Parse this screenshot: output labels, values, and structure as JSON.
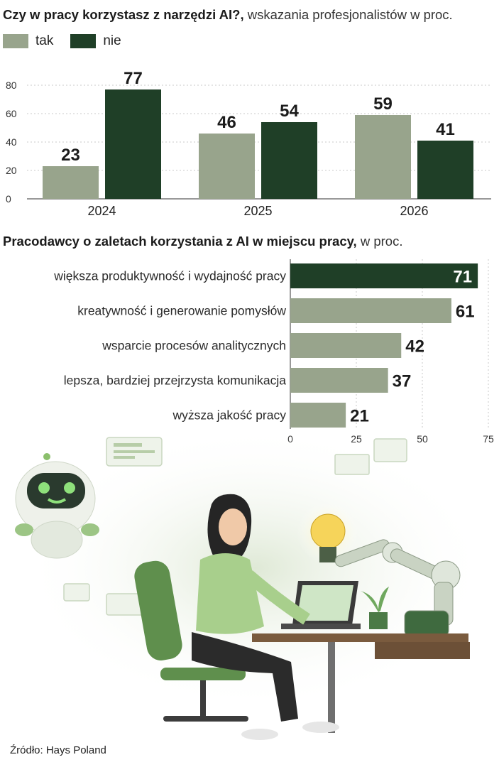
{
  "charts": {
    "chart1": {
      "title_bold": "Czy w pracy korzystasz z narzędzi AI?,",
      "title_rest": " wskazania profesjonalistów w proc."
    },
    "chart2": {
      "title_bold": "Pracodawcy o zaletach korzystania z AI w miejscu pracy,",
      "title_rest": " w proc."
    }
  },
  "colors": {
    "tak": "#98a48c",
    "nie": "#1f3f27",
    "bar_light": "#98a48c",
    "bar_highlight": "#1f3f27",
    "grid": "#c9c9c9"
  },
  "source": "Źródło: Hays Poland",
  "chart_data": [
    {
      "type": "bar",
      "title": "Czy w pracy korzystasz z narzędzi AI?, wskazania profesjonalistów w proc.",
      "categories": [
        "2024",
        "2025",
        "2026"
      ],
      "series": [
        {
          "name": "tak",
          "values": [
            23,
            46,
            59
          ]
        },
        {
          "name": "nie",
          "values": [
            77,
            54,
            41
          ]
        }
      ],
      "yticks": [
        "0",
        "20",
        "40",
        "60",
        "80"
      ],
      "ylim": [
        0,
        90
      ],
      "grid": true,
      "legend": "top-left"
    },
    {
      "type": "bar",
      "orientation": "horizontal",
      "title": "Pracodawcy o zaletach korzystania z AI w miejscu pracy, w proc.",
      "categories": [
        "większa produktywność i wydajność pracy",
        "kreatywność i generowanie pomysłów",
        "wsparcie procesów analitycznych",
        "lepsza, bardziej przejrzysta komunikacja",
        "wyższa jakość pracy"
      ],
      "values": [
        71,
        61,
        42,
        37,
        21
      ],
      "xticks": [
        "0",
        "25",
        "50",
        "75"
      ],
      "xlim": [
        0,
        75
      ],
      "grid": true
    }
  ]
}
